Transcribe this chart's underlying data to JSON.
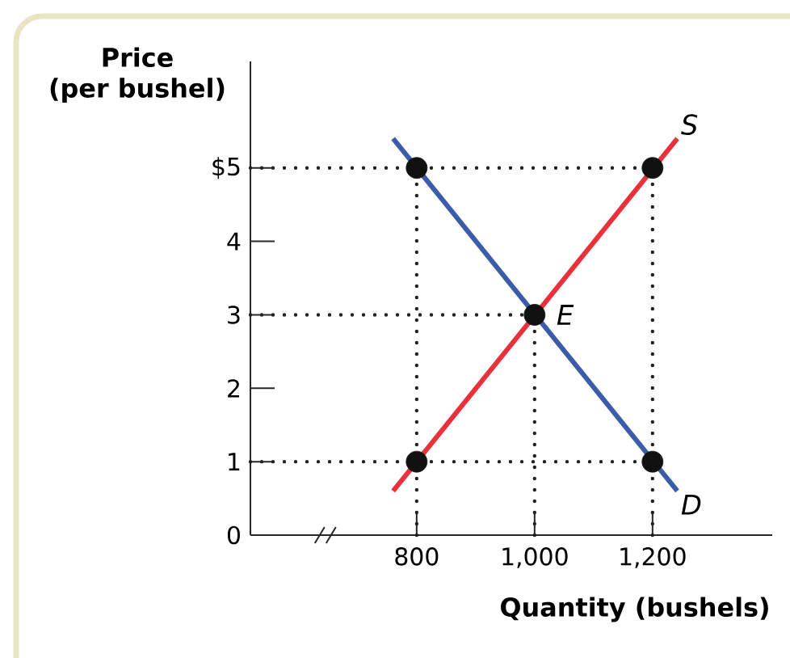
{
  "chart_data": {
    "type": "line",
    "xlabel": "Quantity (bushels)",
    "ylabel": "Price (per bushel)",
    "xlim": [
      518,
      1403
    ],
    "ylim": [
      0,
      6.45
    ],
    "xticks": [
      800,
      {
        "value": 1000,
        "label": "1,000"
      },
      {
        "value": 1200,
        "label": "1,200"
      }
    ],
    "yticks": [
      0,
      1,
      2,
      3,
      4,
      {
        "value": 5,
        "label": "$5"
      }
    ],
    "series": [
      {
        "name": "S",
        "color": "#e8313a",
        "line_style": "solid",
        "marker": "none",
        "x": [
          760,
          1242
        ],
        "values": [
          0.6,
          5.4
        ]
      },
      {
        "name": "D",
        "color": "#3b5ca8",
        "line_style": "solid",
        "marker": "none",
        "x": [
          760,
          1242
        ],
        "values": [
          5.4,
          0.6
        ]
      },
      {
        "color": "#222222",
        "line_style": "dotted",
        "marker": "none",
        "x": [
          518,
          1200
        ],
        "values": [
          5,
          5
        ]
      },
      {
        "color": "#222222",
        "line_style": "dotted",
        "marker": "none",
        "x": [
          518,
          1000
        ],
        "values": [
          3,
          3
        ]
      },
      {
        "color": "#222222",
        "line_style": "dotted",
        "marker": "none",
        "x": [
          518,
          1200
        ],
        "values": [
          1,
          1
        ]
      },
      {
        "color": "#222222",
        "line_style": "dotted",
        "marker": "none",
        "x": [
          800,
          800
        ],
        "values": [
          0,
          5
        ]
      },
      {
        "color": "#222222",
        "line_style": "dotted",
        "marker": "none",
        "x": [
          1000,
          1000
        ],
        "values": [
          0,
          3
        ]
      },
      {
        "color": "#222222",
        "line_style": "dotted",
        "marker": "none",
        "x": [
          1200,
          1200
        ],
        "values": [
          0,
          5
        ]
      },
      {
        "type": "scatter",
        "color": "#111111",
        "marker": "circle",
        "x": [
          800,
          1200,
          1000,
          800,
          1200
        ],
        "values": [
          5,
          5,
          3,
          1,
          1
        ]
      }
    ],
    "annotations": [
      {
        "text": "E",
        "x": 1000,
        "y": 3
      }
    ]
  }
}
